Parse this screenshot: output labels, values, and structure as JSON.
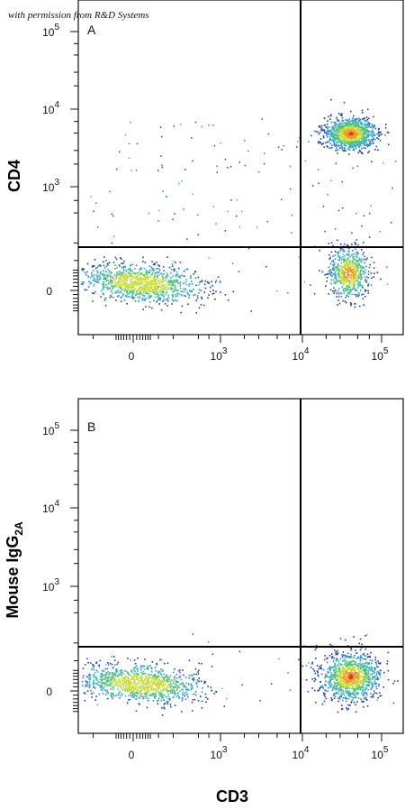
{
  "credit": "with permission from R&D Systems",
  "x_axis_title": "CD3",
  "colors": {
    "frame": "#111111",
    "gate": "#000000",
    "density": [
      "#1f3da8",
      "#2a7fd0",
      "#39b1c9",
      "#4fc37a",
      "#c9dd3a",
      "#f29b21",
      "#e0251c"
    ]
  },
  "chart_data": [
    {
      "type": "scatter",
      "subtype": "flow-cytometry-density-dot-plot",
      "panel_label": "A",
      "ylabel": "CD4",
      "xscale": "biexponential",
      "yscale": "biexponential",
      "x_ticks": [
        {
          "value": 0,
          "base": "0",
          "exp": ""
        },
        {
          "value": 1000,
          "base": "10",
          "exp": "3"
        },
        {
          "value": 10000,
          "base": "10",
          "exp": "4"
        },
        {
          "value": 100000,
          "base": "10",
          "exp": "5"
        }
      ],
      "y_ticks": [
        {
          "value": 0,
          "base": "0",
          "exp": ""
        },
        {
          "value": 1000,
          "base": "10",
          "exp": "3"
        },
        {
          "value": 10000,
          "base": "10",
          "exp": "4"
        },
        {
          "value": 100000,
          "base": "10",
          "exp": "5"
        }
      ],
      "quadrant_gate": {
        "x": 12000,
        "y": 220
      },
      "populations": [
        {
          "quadrant": "upper-right",
          "x_center": 40000,
          "y_center": 5000,
          "relative_size": "large"
        },
        {
          "quadrant": "lower-right",
          "x_center": 38000,
          "y_center": 50,
          "relative_size": "medium"
        },
        {
          "quadrant": "lower-left",
          "x_center": 20,
          "y_center": 20,
          "relative_size": "large"
        }
      ]
    },
    {
      "type": "scatter",
      "subtype": "flow-cytometry-density-dot-plot",
      "panel_label": "B",
      "ylabel": "Mouse IgG",
      "ylabel_sub": "2A",
      "xscale": "biexponential",
      "yscale": "biexponential",
      "x_ticks": [
        {
          "value": 0,
          "base": "0",
          "exp": ""
        },
        {
          "value": 1000,
          "base": "10",
          "exp": "3"
        },
        {
          "value": 10000,
          "base": "10",
          "exp": "4"
        },
        {
          "value": 100000,
          "base": "10",
          "exp": "5"
        }
      ],
      "y_ticks": [
        {
          "value": 0,
          "base": "0",
          "exp": ""
        },
        {
          "value": 1000,
          "base": "10",
          "exp": "3"
        },
        {
          "value": 10000,
          "base": "10",
          "exp": "4"
        },
        {
          "value": 100000,
          "base": "10",
          "exp": "5"
        }
      ],
      "quadrant_gate": {
        "x": 12000,
        "y": 220
      },
      "populations": [
        {
          "quadrant": "lower-right",
          "x_center": 40000,
          "y_center": 40,
          "relative_size": "large"
        },
        {
          "quadrant": "lower-left",
          "x_center": 20,
          "y_center": 20,
          "relative_size": "large"
        }
      ]
    }
  ]
}
